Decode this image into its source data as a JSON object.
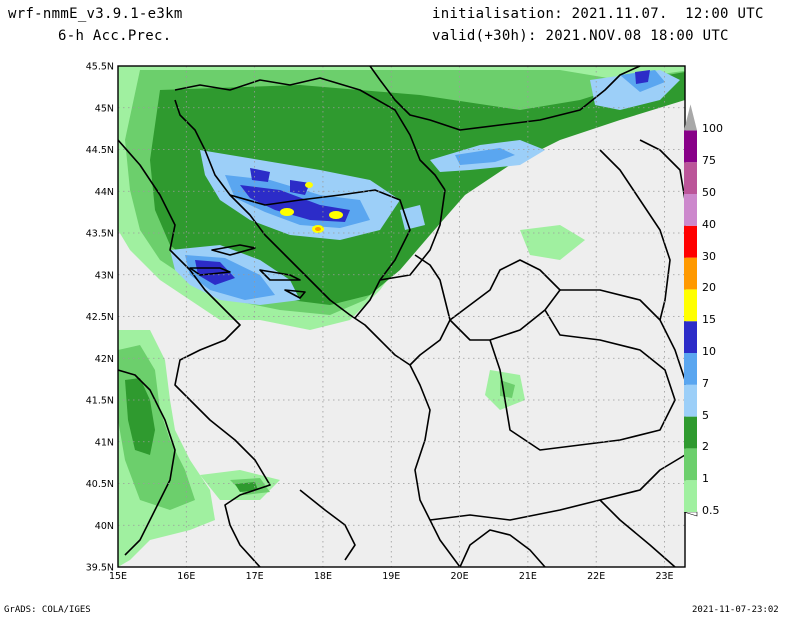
{
  "header": {
    "model": "wrf-nmmE_v3.9.1-e3km",
    "field": "6-h Acc.Prec.",
    "init": "initialisation: 2021.11.07.  12:00 UTC",
    "valid": "valid(+30h): 2021.NOV.08 18:00 UTC"
  },
  "footer": {
    "left": "GrADS: COLA/IGES",
    "right": "2021-11-07-23:02"
  },
  "axes": {
    "lon_labels": [
      "15E",
      "16E",
      "17E",
      "18E",
      "19E",
      "20E",
      "21E",
      "22E",
      "23E"
    ],
    "lat_labels": [
      "39.5N",
      "40N",
      "40.5N",
      "41N",
      "41.5N",
      "42N",
      "42.5N",
      "43N",
      "43.5N",
      "44N",
      "44.5N",
      "45N",
      "45.5N"
    ],
    "lon_values": [
      15,
      16,
      17,
      18,
      19,
      20,
      21,
      22,
      23
    ],
    "lat_values": [
      39.5,
      40,
      40.5,
      41,
      41.5,
      42,
      42.5,
      43,
      43.5,
      44,
      44.5,
      45,
      45.5
    ],
    "lon_range": [
      15,
      23.3
    ],
    "lat_range": [
      39.5,
      45.5
    ]
  },
  "colorbar": {
    "labels": [
      "0.5",
      "1",
      "2",
      "5",
      "7",
      "10",
      "15",
      "20",
      "30",
      "40",
      "50",
      "75",
      "100"
    ],
    "colors": [
      "#a0f0a0",
      "#6ccf6c",
      "#2f9a2f",
      "#9ccff8",
      "#5aa6f0",
      "#2c2cc8",
      "#ffff00",
      "#ff9900",
      "#ff0000",
      "#cc88cc",
      "#bb5599",
      "#880088",
      "#a8a8a8"
    ]
  },
  "colors": {
    "land": "#eeeeee",
    "sea": "#eeeeee",
    "border": "#000000",
    "grid": "#999999"
  }
}
